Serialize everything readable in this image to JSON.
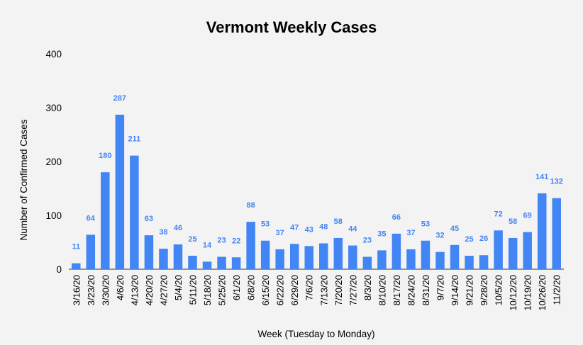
{
  "chart_data": {
    "type": "bar",
    "title": "Vermont Weekly Cases",
    "xlabel": "Week (Tuesday to Monday)",
    "ylabel": "Number of Confirmed Cases",
    "ylim": [
      0,
      400
    ],
    "yticks": [
      0,
      100,
      200,
      300,
      400
    ],
    "grid": false,
    "bar_color": "#4285f4",
    "label_color": "#4285f4",
    "categories": [
      "3/16/20",
      "3/23/20",
      "3/30/20",
      "4/6/20",
      "4/13/20",
      "4/20/20",
      "4/27/20",
      "5/4/20",
      "5/11/20",
      "5/18/20",
      "5/25/20",
      "6/1/20",
      "6/8/20",
      "6/15/20",
      "6/22/20",
      "6/29/20",
      "7/6/20",
      "7/13/20",
      "7/20/20",
      "7/27/20",
      "8/3/20",
      "8/10/20",
      "8/17/20",
      "8/24/20",
      "8/31/20",
      "9/7/20",
      "9/14/20",
      "9/21/20",
      "9/28/20",
      "10/5/20",
      "10/12/20",
      "10/19/20",
      "10/26/20",
      "11/2/20"
    ],
    "values": [
      11,
      64,
      180,
      287,
      211,
      63,
      38,
      46,
      25,
      14,
      23,
      22,
      88,
      53,
      37,
      47,
      43,
      48,
      58,
      44,
      23,
      35,
      66,
      37,
      53,
      32,
      45,
      25,
      26,
      72,
      58,
      69,
      141,
      132
    ]
  }
}
